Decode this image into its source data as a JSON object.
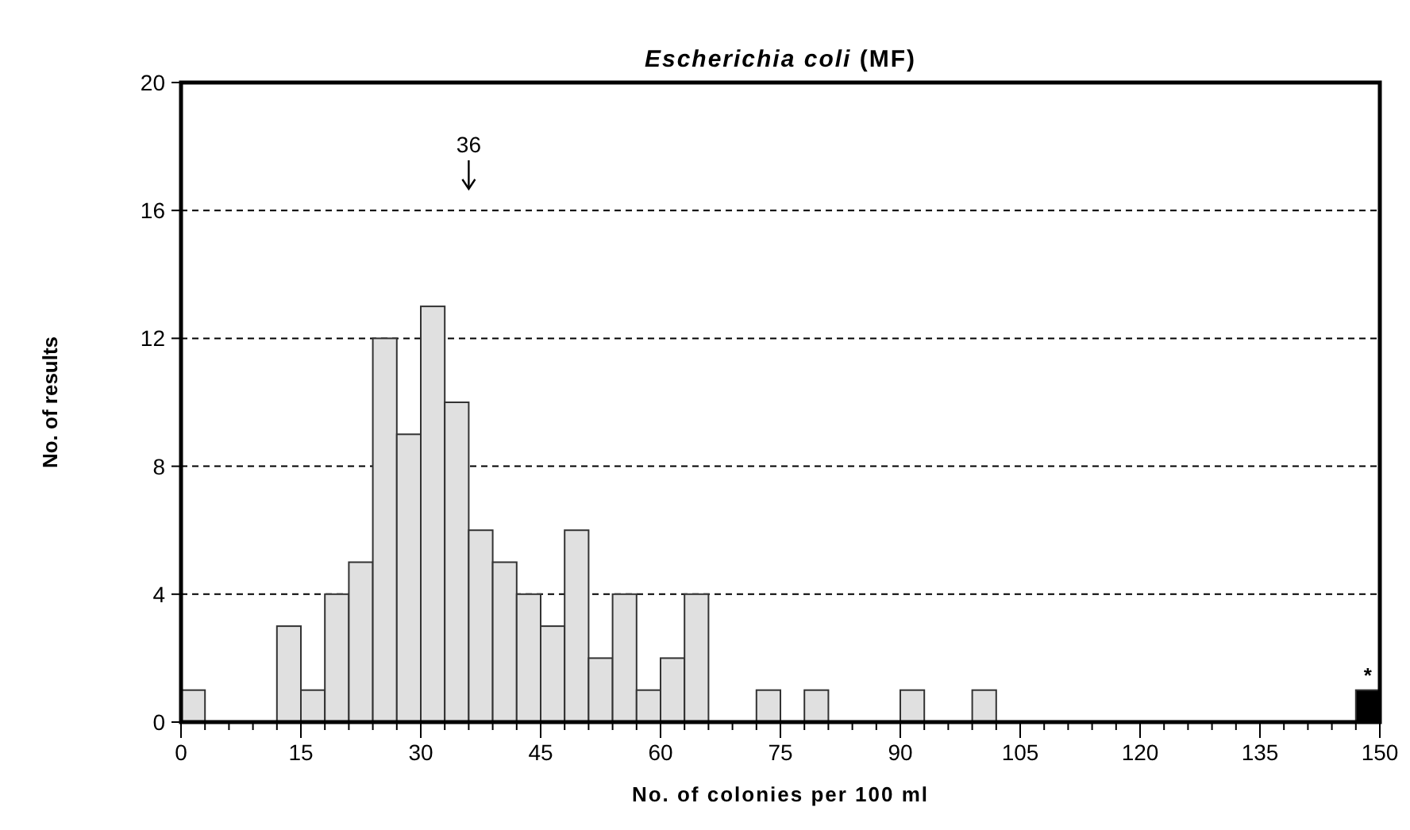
{
  "chart_data": {
    "type": "histogram",
    "title": "Escherichia coli (MF)",
    "xlabel": "No. of colonies per 100 ml",
    "ylabel": "No. of results",
    "bins": [
      0,
      3,
      6,
      9,
      12,
      15,
      18,
      21,
      24,
      27,
      30,
      33,
      36,
      39,
      42,
      45,
      48,
      51,
      54,
      57,
      60,
      63,
      66,
      69,
      72,
      75,
      78,
      81,
      84,
      87,
      90,
      93,
      96,
      99,
      102,
      105,
      108,
      111,
      114,
      117,
      120,
      123,
      126,
      129,
      132,
      135,
      138,
      141,
      144,
      147,
      150
    ],
    "values": [
      1,
      0,
      0,
      0,
      3,
      1,
      4,
      5,
      12,
      9,
      13,
      10,
      6,
      5,
      4,
      3,
      6,
      2,
      4,
      1,
      2,
      4,
      0,
      0,
      1,
      0,
      1,
      0,
      0,
      0,
      1,
      0,
      0,
      1,
      0,
      0,
      0,
      0,
      0,
      0,
      0,
      0,
      0,
      0,
      0,
      0,
      0,
      0,
      0,
      1
    ],
    "colors": [
      "#e0e0e0",
      "#e0e0e0",
      "#e0e0e0",
      "#e0e0e0",
      "#e0e0e0",
      "#e0e0e0",
      "#e0e0e0",
      "#e0e0e0",
      "#e0e0e0",
      "#e0e0e0",
      "#e0e0e0",
      "#e0e0e0",
      "#e0e0e0",
      "#e0e0e0",
      "#e0e0e0",
      "#e0e0e0",
      "#e0e0e0",
      "#e0e0e0",
      "#e0e0e0",
      "#e0e0e0",
      "#e0e0e0",
      "#e0e0e0",
      "#e0e0e0",
      "#e0e0e0",
      "#e0e0e0",
      "#e0e0e0",
      "#e0e0e0",
      "#e0e0e0",
      "#e0e0e0",
      "#e0e0e0",
      "#e0e0e0",
      "#e0e0e0",
      "#e0e0e0",
      "#e0e0e0",
      "#e0e0e0",
      "#e0e0e0",
      "#e0e0e0",
      "#e0e0e0",
      "#e0e0e0",
      "#e0e0e0",
      "#e0e0e0",
      "#e0e0e0",
      "#e0e0e0",
      "#e0e0e0",
      "#e0e0e0",
      "#e0e0e0",
      "#e0e0e0",
      "#e0e0e0",
      "#e0e0e0",
      "#000000"
    ],
    "xlim": [
      0,
      150
    ],
    "ylim": [
      0,
      20
    ],
    "xticks": [
      0,
      {
        "value": 3,
        "label": null
      },
      {
        "value": 6,
        "label": null
      },
      {
        "value": 9,
        "label": null
      },
      {
        "value": 12,
        "label": null
      },
      15,
      {
        "value": 18,
        "label": null
      },
      {
        "value": 21,
        "label": null
      },
      {
        "value": 24,
        "label": null
      },
      {
        "value": 27,
        "label": null
      },
      30,
      {
        "value": 33,
        "label": null
      },
      {
        "value": 36,
        "label": null
      },
      {
        "value": 39,
        "label": null
      },
      {
        "value": 42,
        "label": null
      },
      45,
      {
        "value": 48,
        "label": null
      },
      {
        "value": 51,
        "label": null
      },
      {
        "value": 54,
        "label": null
      },
      {
        "value": 57,
        "label": null
      },
      60,
      {
        "value": 63,
        "label": null
      },
      {
        "value": 66,
        "label": null
      },
      {
        "value": 69,
        "label": null
      },
      {
        "value": 72,
        "label": null
      },
      75,
      {
        "value": 78,
        "label": null
      },
      {
        "value": 81,
        "label": null
      },
      {
        "value": 84,
        "label": null
      },
      {
        "value": 87,
        "label": null
      },
      90,
      {
        "value": 93,
        "label": null
      },
      {
        "value": 96,
        "label": null
      },
      {
        "value": 99,
        "label": null
      },
      {
        "value": 102,
        "label": null
      },
      105,
      {
        "value": 108,
        "label": null
      },
      {
        "value": 111,
        "label": null
      },
      {
        "value": 114,
        "label": null
      },
      {
        "value": 117,
        "label": null
      },
      120,
      {
        "value": 123,
        "label": null
      },
      {
        "value": 126,
        "label": null
      },
      {
        "value": 129,
        "label": null
      },
      {
        "value": 132,
        "label": null
      },
      135,
      {
        "value": 138,
        "label": null
      },
      {
        "value": 141,
        "label": null
      },
      {
        "value": 144,
        "label": null
      },
      {
        "value": 147,
        "label": null
      },
      150
    ],
    "yticks": [
      0,
      4,
      8,
      12,
      16,
      20
    ],
    "grid": "y",
    "annotations": [
      "36",
      "*"
    ]
  }
}
